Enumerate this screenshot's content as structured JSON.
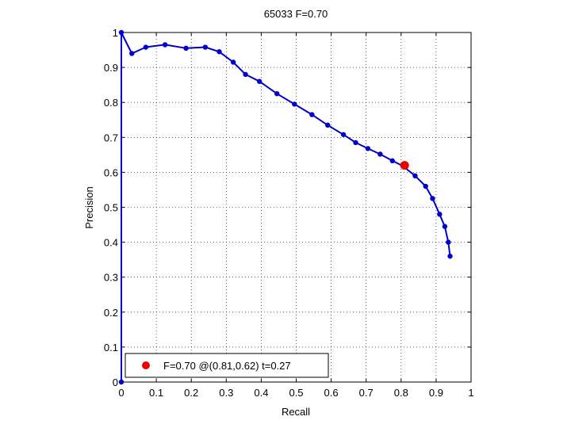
{
  "chart_data": {
    "type": "line",
    "title": "65033 F=0.70",
    "xlabel": "Recall",
    "ylabel": "Precision",
    "xlim": [
      0,
      1
    ],
    "ylim": [
      0,
      1
    ],
    "xticks": [
      0,
      0.1,
      0.2,
      0.3,
      0.4,
      0.5,
      0.6,
      0.7,
      0.8,
      0.9,
      1
    ],
    "yticks": [
      0,
      0.1,
      0.2,
      0.3,
      0.4,
      0.5,
      0.6,
      0.7,
      0.8,
      0.9,
      1
    ],
    "xtick_labels": [
      "0",
      "0.1",
      "0.2",
      "0.3",
      "0.4",
      "0.5",
      "0.6",
      "0.7",
      "0.8",
      "0.9",
      "1"
    ],
    "ytick_labels": [
      "0",
      "0.1",
      "0.2",
      "0.3",
      "0.4",
      "0.5",
      "0.6",
      "0.7",
      "0.8",
      "0.9",
      "1"
    ],
    "grid": true,
    "legend_position": "bottom-left",
    "series": [
      {
        "color": "#0000cc",
        "x": [
          0,
          0,
          0.03,
          0.07,
          0.125,
          0.185,
          0.24,
          0.28,
          0.32,
          0.355,
          0.395,
          0.445,
          0.495,
          0.545,
          0.59,
          0.635,
          0.67,
          0.705,
          0.74,
          0.775,
          0.805,
          0.84,
          0.87,
          0.89,
          0.91,
          0.925,
          0.935,
          0.94
        ],
        "y": [
          0,
          1,
          0.94,
          0.958,
          0.965,
          0.955,
          0.958,
          0.945,
          0.915,
          0.88,
          0.86,
          0.825,
          0.795,
          0.765,
          0.735,
          0.708,
          0.685,
          0.668,
          0.652,
          0.633,
          0.618,
          0.59,
          0.56,
          0.525,
          0.48,
          0.445,
          0.4,
          0.36
        ]
      }
    ],
    "best_point": {
      "x": 0.81,
      "y": 0.62,
      "color": "#ee0000"
    },
    "legend": {
      "label": "F=0.70 @(0.81,0.62) t=0.27"
    }
  }
}
